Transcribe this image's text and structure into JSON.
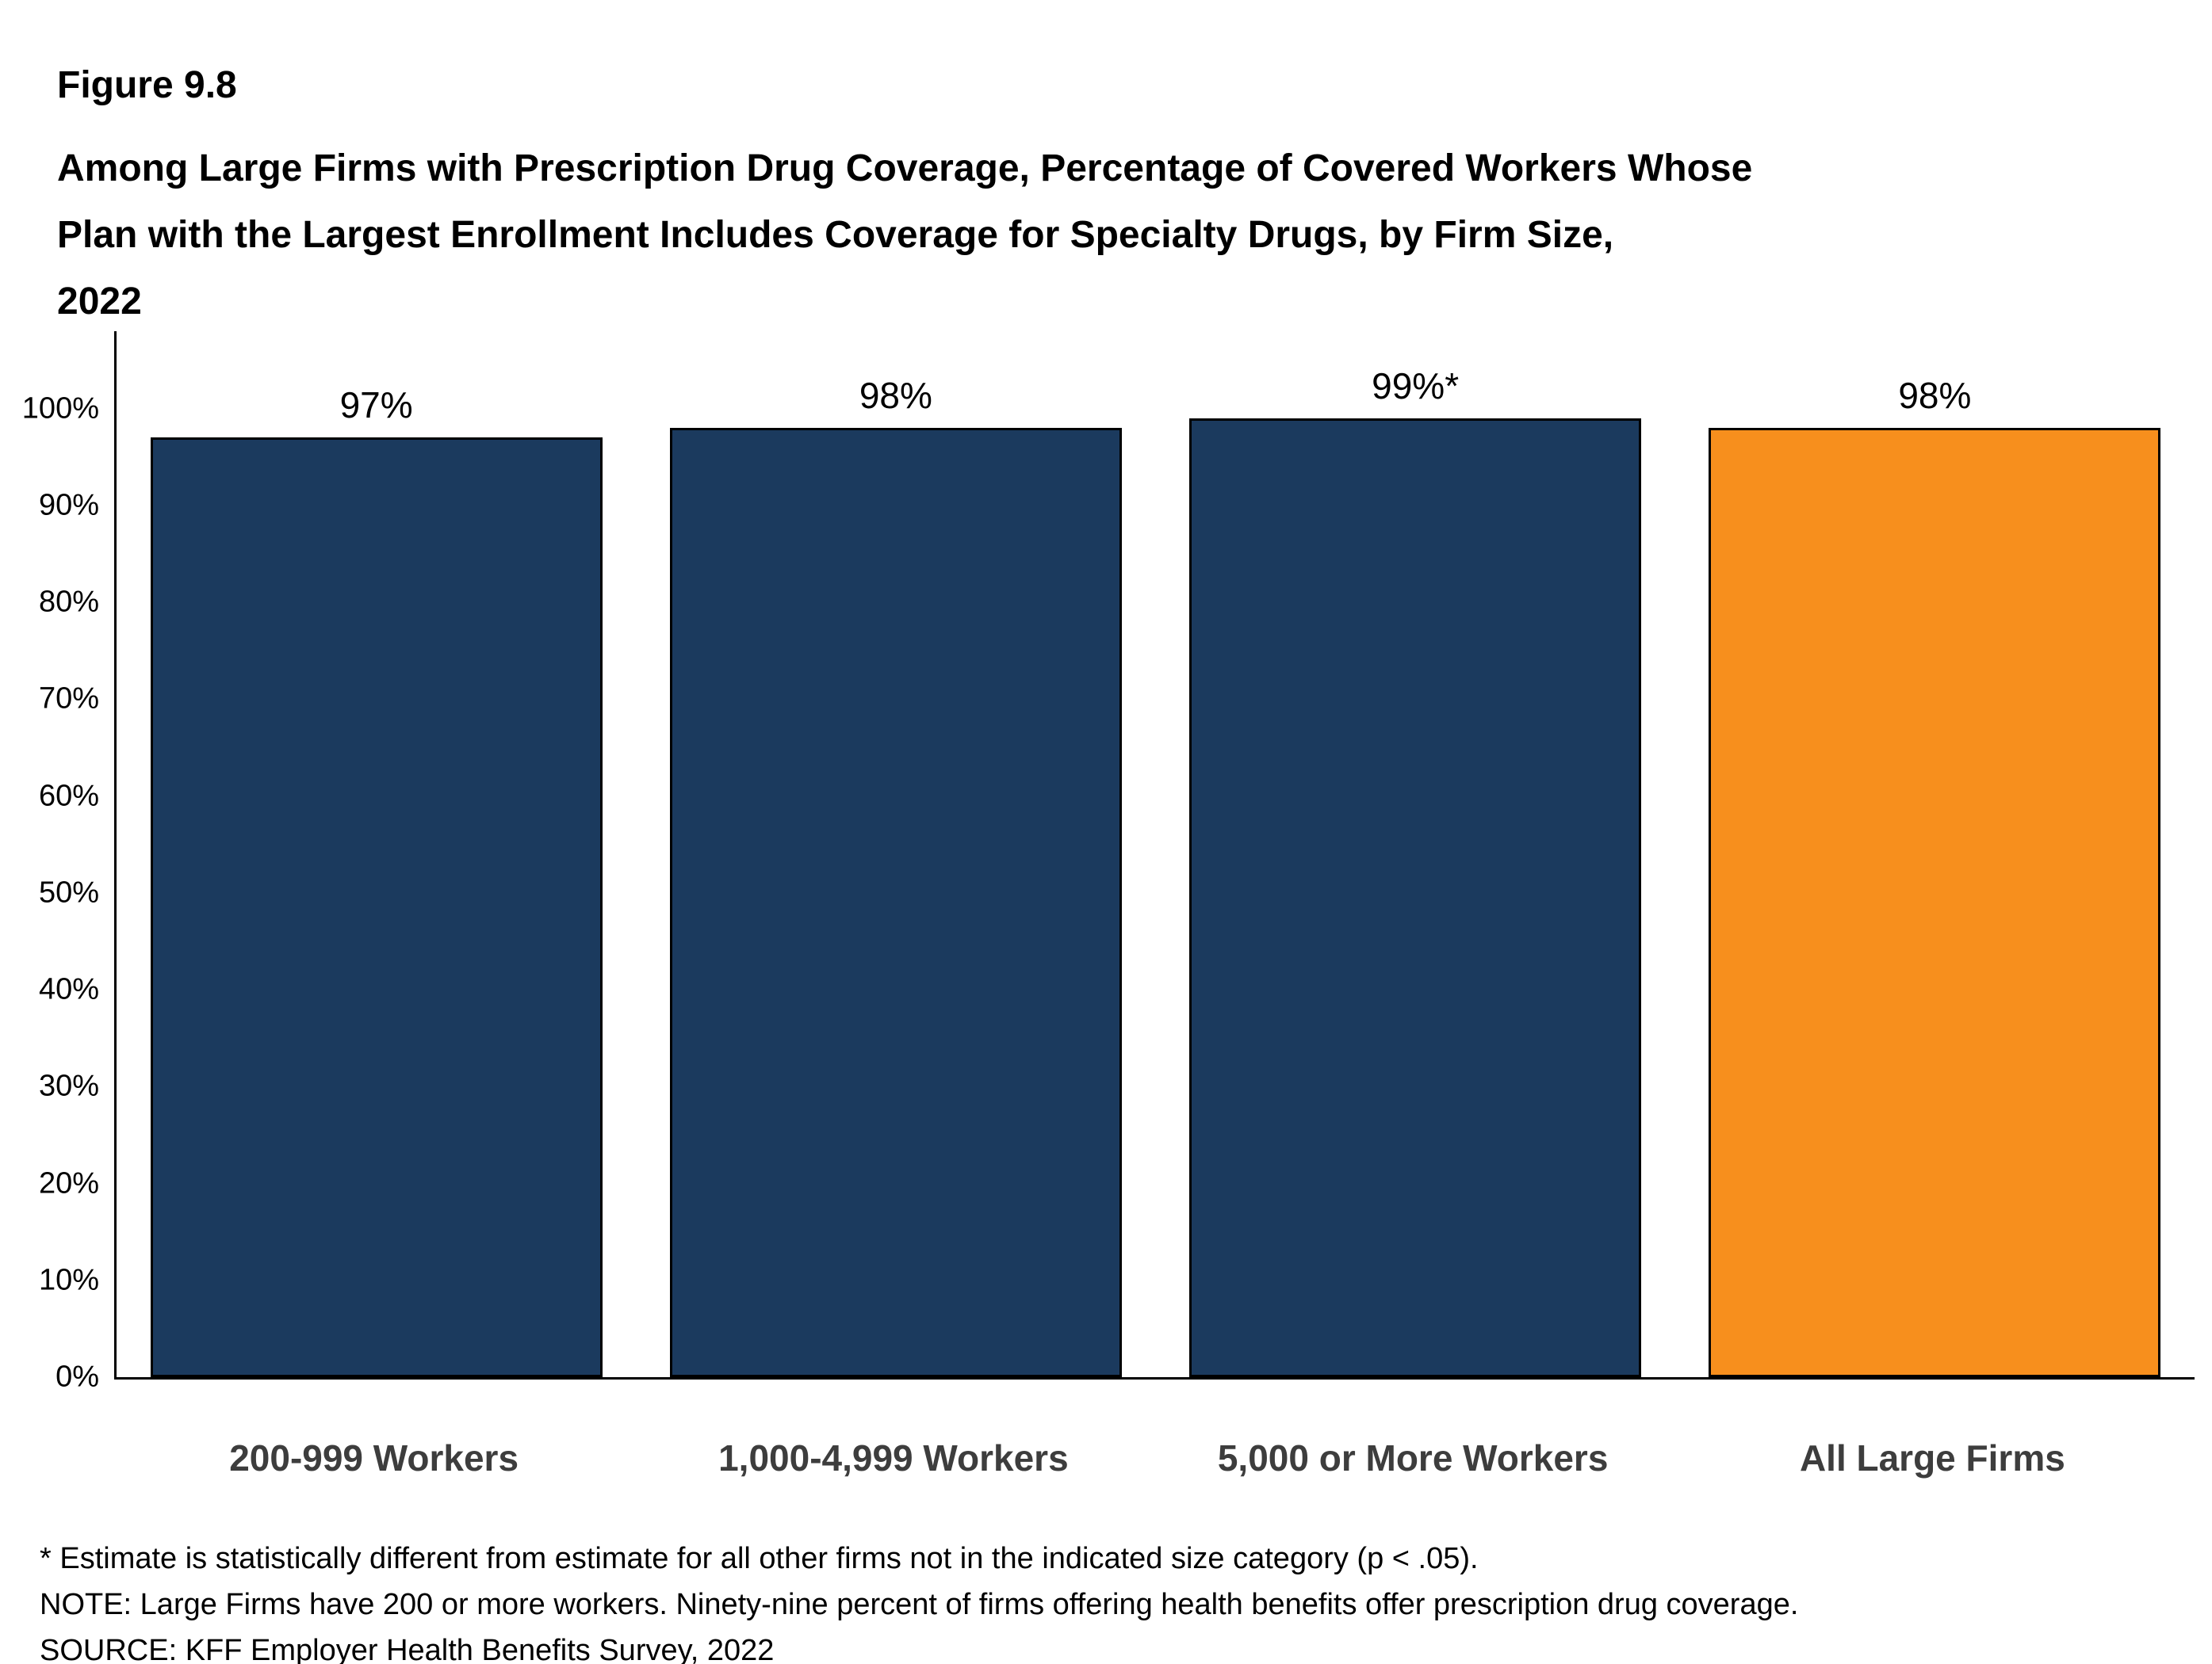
{
  "figure": {
    "number": "Figure 9.8",
    "title_lines": {
      "0": "Among Large Firms with Prescription Drug Coverage, Percentage of Covered Workers Whose",
      "1": "Plan with the Largest Enrollment Includes Coverage for Specialty Drugs, by Firm Size,",
      "2": "2022"
    }
  },
  "chart_data": {
    "type": "bar",
    "title": "Among Large Firms with Prescription Drug Coverage, Percentage of Covered Workers Whose Plan with the Largest Enrollment Includes Coverage for Specialty Drugs, by Firm Size, 2022",
    "categories": [
      "200-999 Workers",
      "1,000-4,999 Workers",
      "5,000 or More Workers",
      "All Large Firms"
    ],
    "values": [
      97,
      98,
      99,
      98
    ],
    "value_labels": [
      "97%",
      "98%",
      "99%*",
      "98%"
    ],
    "bar_colors": [
      "#1B3A5E",
      "#1B3A5E",
      "#1B3A5E",
      "#F78F1D"
    ],
    "xlabel": "",
    "ylabel": "",
    "ylim": [
      0,
      108
    ],
    "ytick_values": [
      0,
      10,
      20,
      30,
      40,
      50,
      60,
      70,
      80,
      90,
      100
    ],
    "ytick_labels": [
      "0%",
      "10%",
      "20%",
      "30%",
      "40%",
      "50%",
      "60%",
      "70%",
      "80%",
      "90%",
      "100%"
    ],
    "grid": false,
    "legend": "none"
  },
  "colors": {
    "navy": "#1B3A5E",
    "orange": "#F78F1D",
    "axis": "#000000",
    "xlabel_text": "#3d3d3d"
  },
  "footnotes": {
    "asterisk": "* Estimate is statistically different from estimate for all other firms not in the indicated size category (p < .05).",
    "note": "NOTE: Large Firms have 200 or more workers. Ninety-nine percent of firms offering health benefits offer prescription drug coverage.",
    "source": "SOURCE: KFF Employer Health Benefits Survey, 2022"
  }
}
